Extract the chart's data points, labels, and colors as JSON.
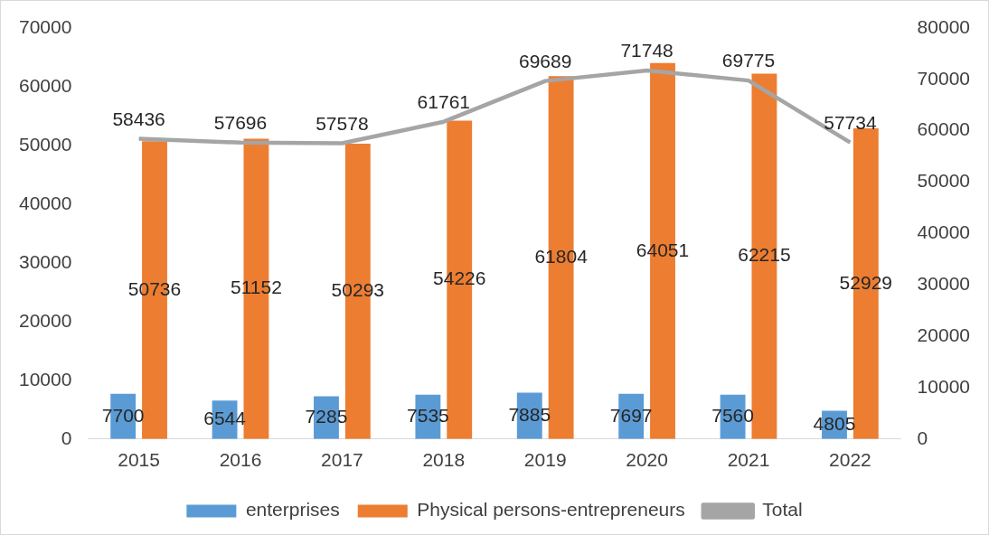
{
  "chart_data": {
    "type": "bar",
    "categories": [
      "2015",
      "2016",
      "2017",
      "2018",
      "2019",
      "2020",
      "2021",
      "2022"
    ],
    "series": [
      {
        "name": "enterprises",
        "color": "#5b9bd5",
        "values": [
          7700,
          6544,
          7285,
          7535,
          7885,
          7697,
          7560,
          4805
        ]
      },
      {
        "name": "Physical persons-entrepreneurs",
        "color": "#ed7d31",
        "values": [
          50736,
          51152,
          50293,
          54226,
          61804,
          64051,
          62215,
          52929
        ]
      },
      {
        "name": "Total",
        "type": "line",
        "axis": "y2",
        "color": "#a5a5a5",
        "values": [
          58436,
          57696,
          57578,
          61761,
          69689,
          71748,
          69775,
          57734
        ]
      }
    ],
    "ylim": [
      0,
      70000
    ],
    "yticks": [
      0,
      10000,
      20000,
      30000,
      40000,
      50000,
      60000,
      70000
    ],
    "y2lim": [
      0,
      80000
    ],
    "y2ticks": [
      0,
      10000,
      20000,
      30000,
      40000,
      50000,
      60000,
      70000,
      80000
    ],
    "grid": false,
    "legend": "bottom",
    "marker": "none",
    "line_style": "solid",
    "data_labels": true
  }
}
